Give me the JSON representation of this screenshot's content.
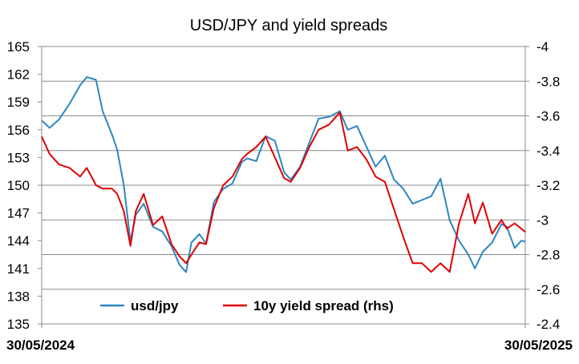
{
  "chart_data": {
    "type": "line",
    "title": "USD/JPY and yield spreads",
    "x_labels": [
      "30/05/2024",
      "30/05/2025"
    ],
    "x_range": [
      "2024-05-30",
      "2025-05-30"
    ],
    "y_left": {
      "range": [
        135,
        165
      ],
      "ticks": [
        "135",
        "138",
        "141",
        "144",
        "147",
        "150",
        "153",
        "156",
        "159",
        "162",
        "165"
      ]
    },
    "y_right": {
      "range": [
        -2.4,
        -4.0
      ],
      "ticks": [
        "-2.4",
        "-2.6",
        "-2.8",
        "-3",
        "-3.2",
        "-3.4",
        "-3.6",
        "-3.8",
        "-4"
      ]
    },
    "gridlines": "horizontal, right axis",
    "legend_position": "bottom-inside",
    "series": [
      {
        "name": "usd/jpy",
        "axis": "left",
        "color": "#2e86c1",
        "points": [
          [
            "2024-05-30",
            157.0
          ],
          [
            "2024-06-05",
            156.2
          ],
          [
            "2024-06-12",
            157.1
          ],
          [
            "2024-06-20",
            158.8
          ],
          [
            "2024-06-28",
            160.8
          ],
          [
            "2024-07-03",
            161.7
          ],
          [
            "2024-07-10",
            161.4
          ],
          [
            "2024-07-15",
            158.0
          ],
          [
            "2024-07-22",
            155.5
          ],
          [
            "2024-07-26",
            153.8
          ],
          [
            "2024-07-31",
            150.0
          ],
          [
            "2024-08-05",
            143.9
          ],
          [
            "2024-08-09",
            146.8
          ],
          [
            "2024-08-15",
            148.0
          ],
          [
            "2024-08-22",
            145.5
          ],
          [
            "2024-08-29",
            145.0
          ],
          [
            "2024-09-05",
            143.4
          ],
          [
            "2024-09-11",
            141.4
          ],
          [
            "2024-09-16",
            140.6
          ],
          [
            "2024-09-20",
            143.8
          ],
          [
            "2024-09-26",
            144.7
          ],
          [
            "2024-10-01",
            143.7
          ],
          [
            "2024-10-07",
            148.2
          ],
          [
            "2024-10-14",
            149.6
          ],
          [
            "2024-10-21",
            150.2
          ],
          [
            "2024-10-28",
            152.5
          ],
          [
            "2024-11-01",
            152.9
          ],
          [
            "2024-11-08",
            152.6
          ],
          [
            "2024-11-15",
            155.3
          ],
          [
            "2024-11-22",
            154.8
          ],
          [
            "2024-11-29",
            151.4
          ],
          [
            "2024-12-04",
            150.6
          ],
          [
            "2024-12-11",
            152.0
          ],
          [
            "2024-12-18",
            154.6
          ],
          [
            "2024-12-25",
            157.2
          ],
          [
            "2025-01-02",
            157.4
          ],
          [
            "2025-01-10",
            158.0
          ],
          [
            "2025-01-16",
            156.0
          ],
          [
            "2025-01-23",
            156.4
          ],
          [
            "2025-01-30",
            154.2
          ],
          [
            "2025-02-06",
            152.0
          ],
          [
            "2025-02-13",
            153.2
          ],
          [
            "2025-02-20",
            150.6
          ],
          [
            "2025-02-27",
            149.6
          ],
          [
            "2025-03-06",
            148.0
          ],
          [
            "2025-03-13",
            148.4
          ],
          [
            "2025-03-20",
            148.8
          ],
          [
            "2025-03-27",
            150.7
          ],
          [
            "2025-04-03",
            146.2
          ],
          [
            "2025-04-10",
            144.0
          ],
          [
            "2025-04-17",
            142.5
          ],
          [
            "2025-04-22",
            141.0
          ],
          [
            "2025-04-28",
            142.8
          ],
          [
            "2025-05-05",
            143.8
          ],
          [
            "2025-05-12",
            145.8
          ],
          [
            "2025-05-16",
            145.5
          ],
          [
            "2025-05-22",
            143.2
          ],
          [
            "2025-05-27",
            144.0
          ],
          [
            "2025-05-30",
            143.9
          ]
        ]
      },
      {
        "name": "10y yield spread (rhs)",
        "axis": "right",
        "color": "#e00000",
        "points": [
          [
            "2024-05-30",
            -3.48
          ],
          [
            "2024-06-05",
            -3.38
          ],
          [
            "2024-06-12",
            -3.32
          ],
          [
            "2024-06-20",
            -3.3
          ],
          [
            "2024-06-28",
            -3.25
          ],
          [
            "2024-07-03",
            -3.3
          ],
          [
            "2024-07-10",
            -3.2
          ],
          [
            "2024-07-15",
            -3.18
          ],
          [
            "2024-07-22",
            -3.18
          ],
          [
            "2024-07-26",
            -3.15
          ],
          [
            "2024-07-31",
            -3.05
          ],
          [
            "2024-08-05",
            -2.85
          ],
          [
            "2024-08-09",
            -3.05
          ],
          [
            "2024-08-15",
            -3.15
          ],
          [
            "2024-08-22",
            -2.97
          ],
          [
            "2024-08-29",
            -3.02
          ],
          [
            "2024-09-05",
            -2.86
          ],
          [
            "2024-09-11",
            -2.79
          ],
          [
            "2024-09-16",
            -2.75
          ],
          [
            "2024-09-20",
            -2.8
          ],
          [
            "2024-09-26",
            -2.87
          ],
          [
            "2024-10-01",
            -2.86
          ],
          [
            "2024-10-07",
            -3.07
          ],
          [
            "2024-10-14",
            -3.2
          ],
          [
            "2024-10-21",
            -3.25
          ],
          [
            "2024-10-28",
            -3.35
          ],
          [
            "2024-11-01",
            -3.38
          ],
          [
            "2024-11-08",
            -3.42
          ],
          [
            "2024-11-15",
            -3.48
          ],
          [
            "2024-11-22",
            -3.36
          ],
          [
            "2024-11-29",
            -3.24
          ],
          [
            "2024-12-04",
            -3.22
          ],
          [
            "2024-12-11",
            -3.3
          ],
          [
            "2024-12-18",
            -3.42
          ],
          [
            "2024-12-25",
            -3.52
          ],
          [
            "2025-01-02",
            -3.55
          ],
          [
            "2025-01-10",
            -3.62
          ],
          [
            "2025-01-16",
            -3.4
          ],
          [
            "2025-01-23",
            -3.42
          ],
          [
            "2025-01-30",
            -3.35
          ],
          [
            "2025-02-06",
            -3.25
          ],
          [
            "2025-02-13",
            -3.22
          ],
          [
            "2025-02-20",
            -3.06
          ],
          [
            "2025-02-27",
            -2.9
          ],
          [
            "2025-03-06",
            -2.75
          ],
          [
            "2025-03-13",
            -2.75
          ],
          [
            "2025-03-20",
            -2.7
          ],
          [
            "2025-03-27",
            -2.75
          ],
          [
            "2025-04-03",
            -2.7
          ],
          [
            "2025-04-10",
            -2.98
          ],
          [
            "2025-04-17",
            -3.15
          ],
          [
            "2025-04-22",
            -2.98
          ],
          [
            "2025-04-28",
            -3.1
          ],
          [
            "2025-05-05",
            -2.92
          ],
          [
            "2025-05-12",
            -3.0
          ],
          [
            "2025-05-16",
            -2.95
          ],
          [
            "2025-05-22",
            -2.98
          ],
          [
            "2025-05-27",
            -2.95
          ],
          [
            "2025-05-30",
            -2.93
          ]
        ]
      }
    ]
  }
}
